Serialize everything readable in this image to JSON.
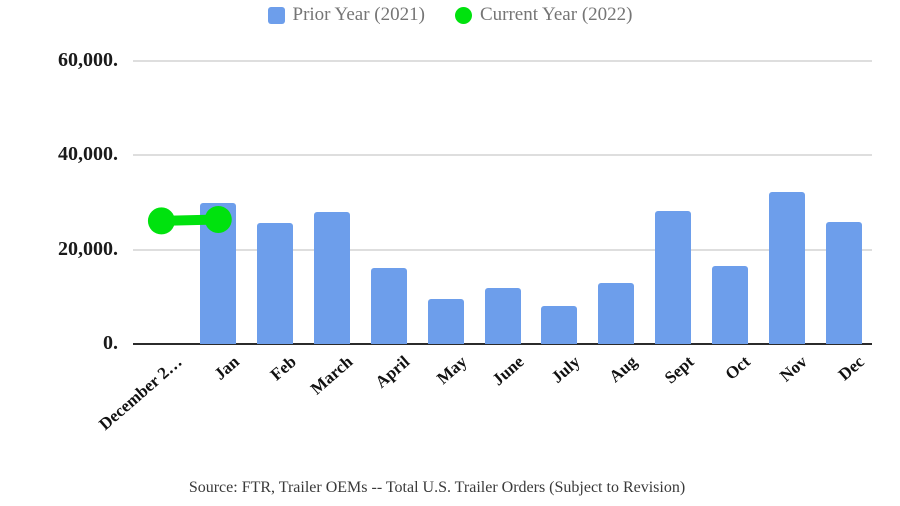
{
  "legend": {
    "items": [
      {
        "label": "Prior Year (2021)",
        "swatch": "square",
        "color": "#6d9eeb"
      },
      {
        "label": "Current Year (2022)",
        "swatch": "dot",
        "color": "#00e20e"
      }
    ]
  },
  "footer": {
    "source_note": "Source: FTR, Trailer OEMs -- Total U.S. Trailer Orders (Subject to Revision)"
  },
  "chart_data": {
    "type": "bar",
    "title": "",
    "xlabel": "",
    "ylabel": "",
    "categories": [
      "December 2…",
      "Jan",
      "Feb",
      "March",
      "April",
      "May",
      "June",
      "July",
      "Aug",
      "Sept",
      "Oct",
      "Nov",
      "Dec"
    ],
    "series": [
      {
        "name": "Prior Year (2021)",
        "type": "bar",
        "color": "#6d9eeb",
        "values": [
          null,
          30000,
          25700,
          28000,
          16100,
          9500,
          11800,
          8100,
          12900,
          28100,
          16500,
          32200,
          25900
        ]
      },
      {
        "name": "Current Year (2022)",
        "type": "line",
        "color": "#00e20e",
        "values": [
          26100,
          26400,
          null,
          null,
          null,
          null,
          null,
          null,
          null,
          null,
          null,
          null,
          null
        ]
      }
    ],
    "ylim": [
      0,
      60000
    ],
    "yticks": [
      {
        "value": 0,
        "label": "0."
      },
      {
        "value": 20000,
        "label": "20,000."
      },
      {
        "value": 40000,
        "label": "40,000."
      },
      {
        "value": 60000,
        "label": "60,000."
      }
    ],
    "grid": true,
    "legend_position": "top",
    "line_marker_radius": 13.5,
    "line_stroke_width": 10
  }
}
